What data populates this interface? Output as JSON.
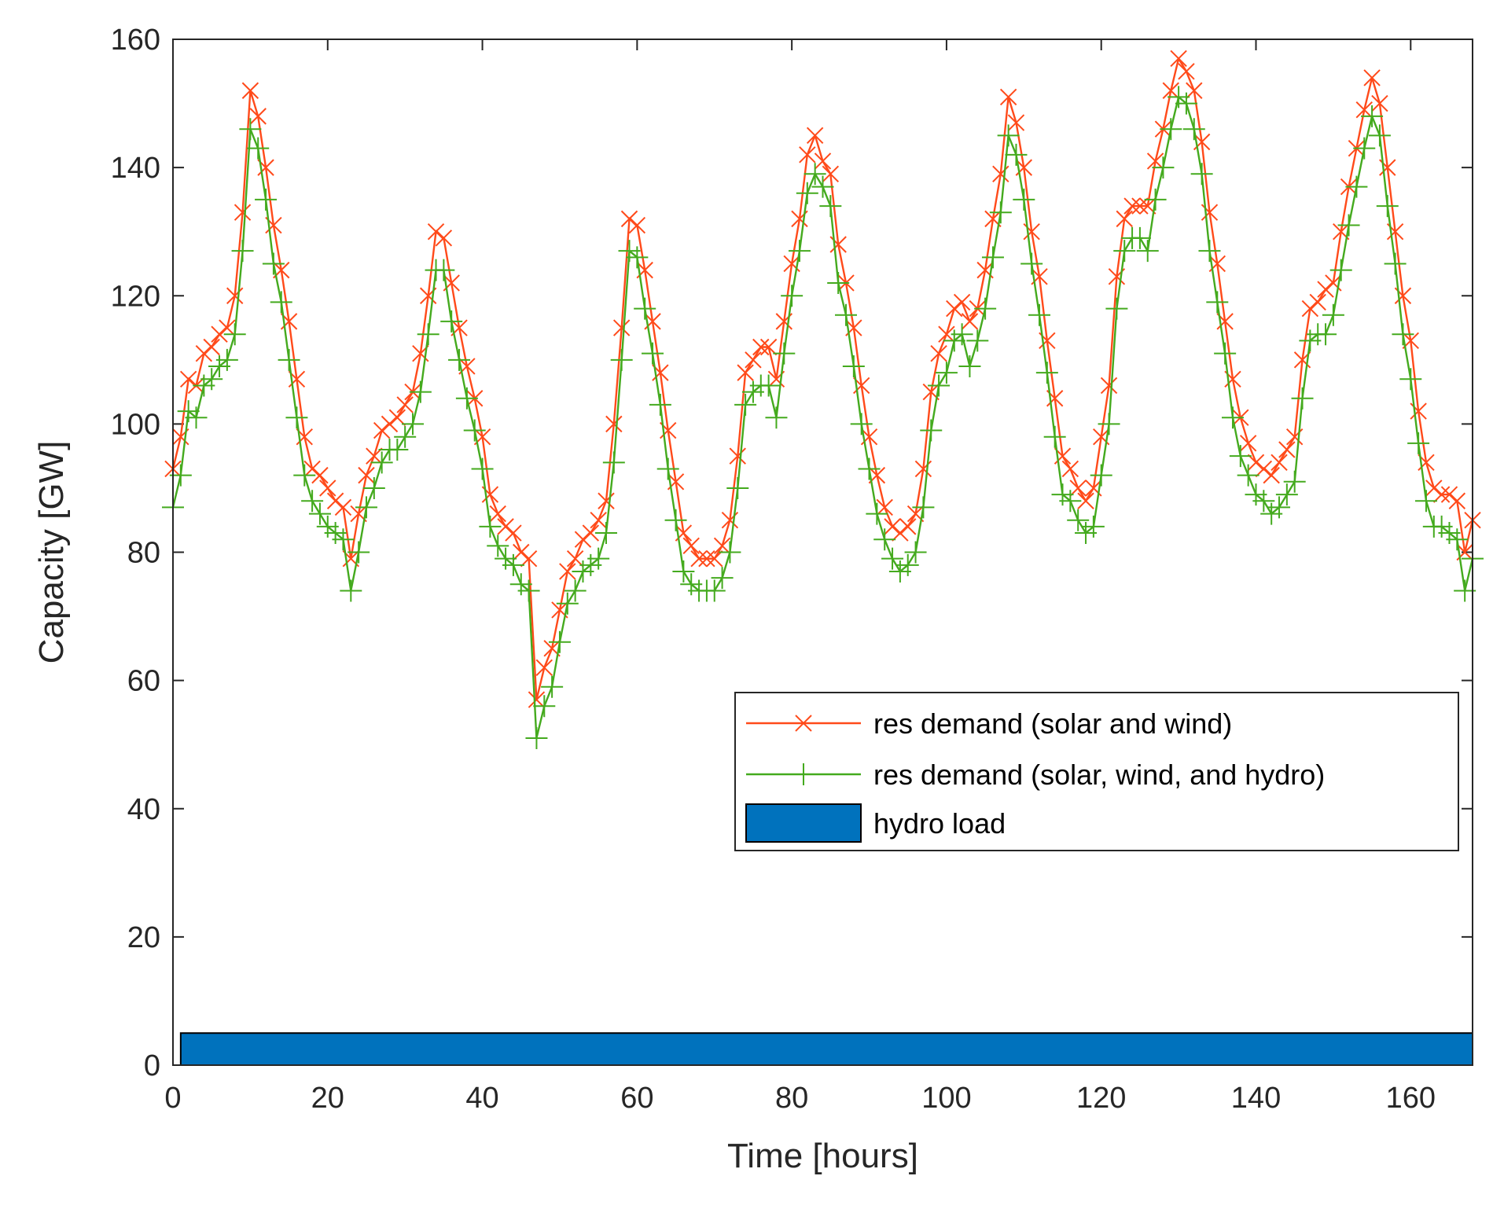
{
  "chart_data": {
    "type": "line",
    "title": "",
    "xlabel": "Time [hours]",
    "ylabel": "Capacity [GW]",
    "xlim": [
      0,
      168
    ],
    "ylim": [
      0,
      160
    ],
    "xticks": [
      0,
      20,
      40,
      60,
      80,
      100,
      120,
      140,
      160
    ],
    "yticks": [
      0,
      20,
      40,
      60,
      80,
      100,
      120,
      140,
      160
    ],
    "legend_position": "center-right",
    "series": [
      {
        "name": "res demand (solar and wind)",
        "color": "#ff4a1a",
        "marker": "x",
        "x": [
          0,
          1,
          2,
          3,
          4,
          5,
          6,
          7,
          8,
          9,
          10,
          11,
          12,
          13,
          14,
          15,
          16,
          17,
          18,
          19,
          20,
          21,
          22,
          23,
          24,
          25,
          26,
          27,
          28,
          29,
          30,
          31,
          32,
          33,
          34,
          35,
          36,
          37,
          38,
          39,
          40,
          41,
          42,
          43,
          44,
          45,
          46,
          47,
          48,
          49,
          50,
          51,
          52,
          53,
          54,
          55,
          56,
          57,
          58,
          59,
          60,
          61,
          62,
          63,
          64,
          65,
          66,
          67,
          68,
          69,
          70,
          71,
          72,
          73,
          74,
          75,
          76,
          77,
          78,
          79,
          80,
          81,
          82,
          83,
          84,
          85,
          86,
          87,
          88,
          89,
          90,
          91,
          92,
          93,
          94,
          95,
          96,
          97,
          98,
          99,
          100,
          101,
          102,
          103,
          104,
          105,
          106,
          107,
          108,
          109,
          110,
          111,
          112,
          113,
          114,
          115,
          116,
          117,
          118,
          119,
          120,
          121,
          122,
          123,
          124,
          125,
          126,
          127,
          128,
          129,
          130,
          131,
          132,
          133,
          134,
          135,
          136,
          137,
          138,
          139,
          140,
          141,
          142,
          143,
          144,
          145,
          146,
          147,
          148,
          149,
          150,
          151,
          152,
          153,
          154,
          155,
          156,
          157,
          158,
          159,
          160,
          161,
          162,
          163,
          164,
          165,
          166,
          167,
          168
        ],
        "values": [
          93,
          98,
          107,
          106,
          111,
          112,
          114,
          115,
          120,
          133,
          152,
          148,
          140,
          131,
          124,
          116,
          107,
          98,
          93,
          92,
          90,
          88,
          87,
          79,
          86,
          92,
          95,
          99,
          100,
          101,
          103,
          105,
          111,
          120,
          130,
          129,
          122,
          115,
          109,
          104,
          98,
          89,
          86,
          84,
          83,
          80,
          79,
          57,
          62,
          65,
          71,
          77,
          79,
          82,
          83,
          85,
          88,
          100,
          115,
          132,
          131,
          124,
          116,
          108,
          99,
          91,
          83,
          81,
          79,
          79,
          79,
          81,
          85,
          95,
          108,
          110,
          112,
          112,
          107,
          116,
          125,
          132,
          142,
          145,
          141,
          139,
          128,
          122,
          115,
          106,
          98,
          92,
          87,
          84,
          83,
          84,
          86,
          93,
          105,
          111,
          114,
          118,
          119,
          116,
          118,
          124,
          132,
          139,
          151,
          147,
          140,
          130,
          123,
          113,
          104,
          95,
          93,
          90,
          88,
          90,
          98,
          106,
          123,
          132,
          134,
          134,
          134,
          141,
          146,
          152,
          157,
          155,
          152,
          144,
          133,
          125,
          116,
          107,
          101,
          97,
          94,
          93,
          92,
          94,
          96,
          98,
          110,
          118,
          119,
          121,
          122,
          130,
          137,
          143,
          149,
          154,
          150,
          140,
          130,
          120,
          113,
          102,
          94,
          90,
          89,
          89,
          88,
          80,
          85
        ]
      },
      {
        "name": "res demand (solar, wind, and hydro)",
        "color": "#44aa1e",
        "marker": "+",
        "x": [
          0,
          1,
          2,
          3,
          4,
          5,
          6,
          7,
          8,
          9,
          10,
          11,
          12,
          13,
          14,
          15,
          16,
          17,
          18,
          19,
          20,
          21,
          22,
          23,
          24,
          25,
          26,
          27,
          28,
          29,
          30,
          31,
          32,
          33,
          34,
          35,
          36,
          37,
          38,
          39,
          40,
          41,
          42,
          43,
          44,
          45,
          46,
          47,
          48,
          49,
          50,
          51,
          52,
          53,
          54,
          55,
          56,
          57,
          58,
          59,
          60,
          61,
          62,
          63,
          64,
          65,
          66,
          67,
          68,
          69,
          70,
          71,
          72,
          73,
          74,
          75,
          76,
          77,
          78,
          79,
          80,
          81,
          82,
          83,
          84,
          85,
          86,
          87,
          88,
          89,
          90,
          91,
          92,
          93,
          94,
          95,
          96,
          97,
          98,
          99,
          100,
          101,
          102,
          103,
          104,
          105,
          106,
          107,
          108,
          109,
          110,
          111,
          112,
          113,
          114,
          115,
          116,
          117,
          118,
          119,
          120,
          121,
          122,
          123,
          124,
          125,
          126,
          127,
          128,
          129,
          130,
          131,
          132,
          133,
          134,
          135,
          136,
          137,
          138,
          139,
          140,
          141,
          142,
          143,
          144,
          145,
          146,
          147,
          148,
          149,
          150,
          151,
          152,
          153,
          154,
          155,
          156,
          157,
          158,
          159,
          160,
          161,
          162,
          163,
          164,
          165,
          166,
          167,
          168
        ],
        "values": [
          87,
          92,
          102,
          101,
          106,
          107,
          109,
          110,
          114,
          127,
          146,
          143,
          135,
          125,
          119,
          110,
          101,
          92,
          88,
          86,
          84,
          83,
          82,
          74,
          80,
          87,
          90,
          94,
          96,
          96,
          98,
          100,
          105,
          114,
          124,
          124,
          116,
          110,
          104,
          99,
          93,
          84,
          81,
          79,
          78,
          75,
          74,
          51,
          56,
          59,
          66,
          72,
          74,
          77,
          78,
          79,
          83,
          94,
          110,
          127,
          126,
          118,
          111,
          103,
          93,
          85,
          77,
          75,
          74,
          74,
          74,
          76,
          80,
          90,
          103,
          105,
          106,
          106,
          101,
          111,
          120,
          127,
          136,
          139,
          137,
          134,
          122,
          117,
          109,
          100,
          93,
          86,
          82,
          79,
          77,
          78,
          80,
          87,
          99,
          106,
          108,
          113,
          114,
          109,
          113,
          118,
          126,
          133,
          145,
          142,
          135,
          125,
          117,
          108,
          98,
          89,
          88,
          85,
          83,
          84,
          92,
          100,
          118,
          127,
          129,
          129,
          127,
          135,
          140,
          146,
          151,
          150,
          146,
          139,
          127,
          119,
          111,
          101,
          95,
          92,
          89,
          88,
          86,
          87,
          89,
          91,
          104,
          113,
          114,
          114,
          117,
          124,
          131,
          137,
          143,
          148,
          145,
          134,
          125,
          114,
          107,
          97,
          88,
          84,
          84,
          83,
          82,
          74,
          79
        ]
      },
      {
        "name": "hydro load",
        "type": "bar",
        "color": "#0072bd",
        "edge_color": "#000000",
        "x_range": [
          1,
          168
        ],
        "value": 5
      }
    ]
  }
}
